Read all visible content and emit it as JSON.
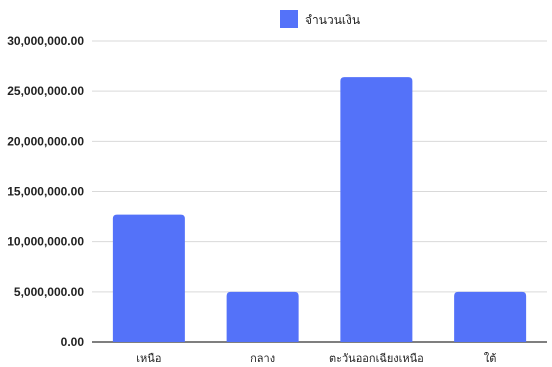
{
  "chart_data": {
    "type": "bar",
    "title": "",
    "xlabel": "",
    "ylabel": "",
    "categories": [
      "เหนือ",
      "กลาง",
      "ตะวันออกเฉียงเหนือ",
      "ใต้"
    ],
    "series": [
      {
        "name": "จำนวนเงิน",
        "values": [
          12700000,
          5000000,
          26400000,
          5000000
        ]
      }
    ],
    "ylim": [
      0,
      30000000
    ],
    "yticks": [
      0,
      5000000,
      10000000,
      15000000,
      20000000,
      25000000,
      30000000
    ],
    "ytick_labels": [
      "0.00",
      "5,000,000.00",
      "10,000,000.00",
      "15,000,000.00",
      "20,000,000.00",
      "25,000,000.00",
      "30,000,000.00"
    ],
    "grid": true,
    "legend_position": "top-center",
    "colors": {
      "bar": "#5472f9",
      "grid": "#d9d9d9",
      "axis": "#333333"
    }
  }
}
